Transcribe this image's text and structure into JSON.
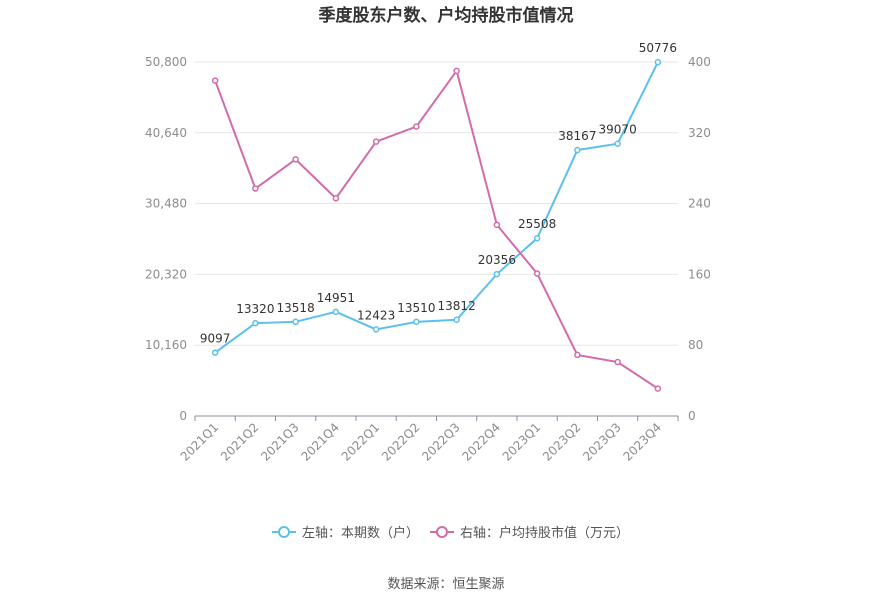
{
  "chart_data": {
    "type": "line",
    "title": "季度股东户数、户均持股市值情况",
    "categories": [
      "2021Q1",
      "2021Q2",
      "2021Q3",
      "2021Q4",
      "2022Q1",
      "2022Q2",
      "2022Q3",
      "2022Q4",
      "2023Q1",
      "2023Q2",
      "2023Q3",
      "2023Q4"
    ],
    "left_axis": {
      "ylim": [
        0,
        50800
      ],
      "ticks": [
        0,
        10160,
        20320,
        30480,
        40640,
        50800
      ],
      "tick_labels": [
        "0",
        "10,160",
        "20,320",
        "30,480",
        "40,640",
        "50,800"
      ]
    },
    "right_axis": {
      "ylim": [
        0,
        400
      ],
      "ticks": [
        0,
        80,
        160,
        240,
        320,
        400
      ],
      "tick_labels": [
        "0",
        "80",
        "160",
        "240",
        "320",
        "400"
      ]
    },
    "series": [
      {
        "name": "左轴：本期数（户）",
        "axis": "left",
        "color": "#5bc0eb",
        "values": [
          9097,
          13320,
          13518,
          14951,
          12423,
          13510,
          13812,
          20356,
          25508,
          38167,
          39070,
          50776
        ],
        "labels": [
          "9097",
          "13320",
          "13518",
          "14951",
          "12423",
          "13510",
          "13812",
          "20356",
          "25508",
          "38167",
          "39070",
          "50776"
        ]
      },
      {
        "name": "右轴：户均持股市值（万元）",
        "axis": "right",
        "color": "#d36bab",
        "values": [
          379,
          257,
          290,
          246,
          310,
          327,
          390,
          216,
          161,
          69,
          61,
          31
        ]
      }
    ],
    "grid": true,
    "legend_position": "bottom"
  },
  "footer": {
    "source": "数据来源：恒生聚源"
  }
}
